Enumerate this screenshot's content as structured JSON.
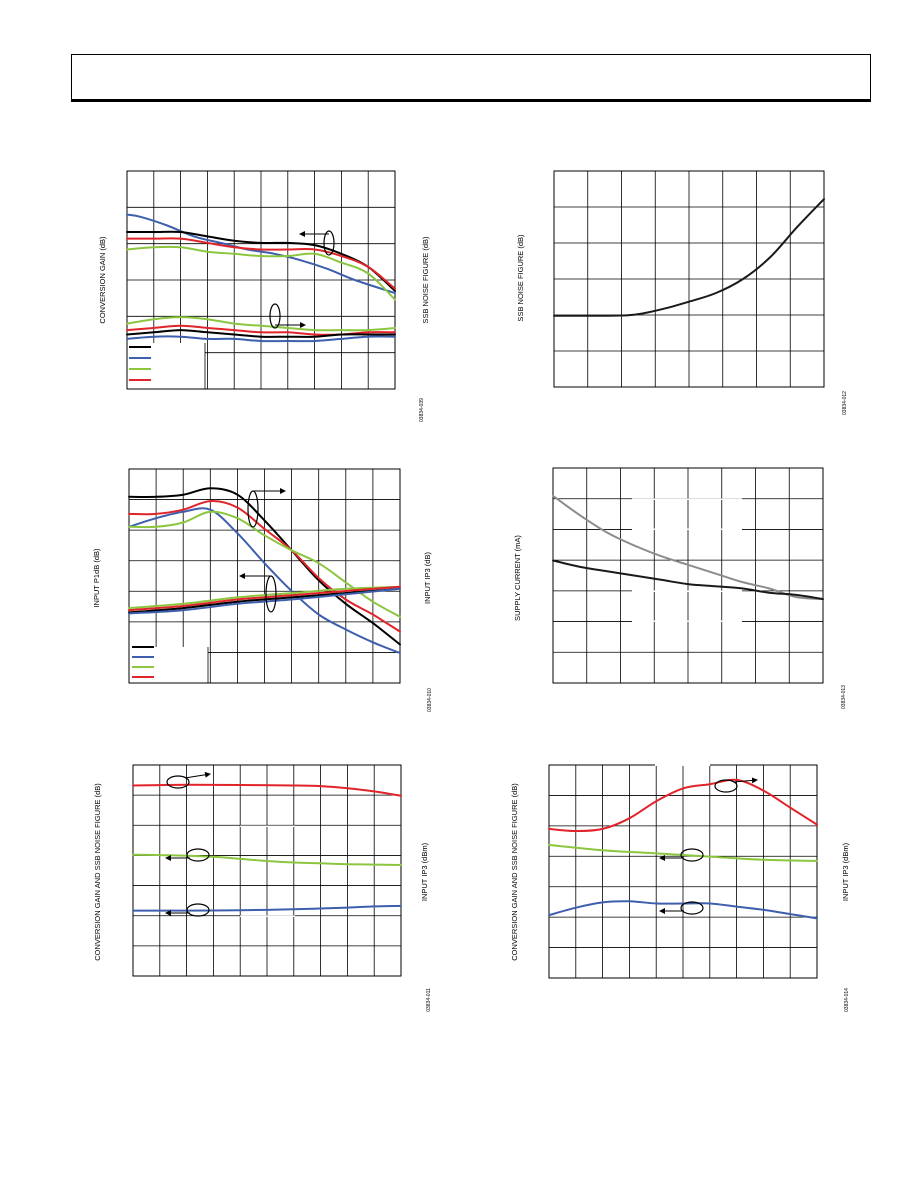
{
  "header": {
    "title": ""
  },
  "chart_data": [
    {
      "id": "chart-1",
      "type": "line",
      "left_axis_label": "CONVERSION GAIN (dB)",
      "right_axis_label": "SSB NOISE FIGURE (dB)",
      "figure_code": "03834-039",
      "legend_colors": [
        "#000000",
        "#3d5fad",
        "#8cc63f",
        "#e0242a"
      ],
      "series": [
        {
          "color": "#3d5fad",
          "values": [
            [
              0,
              0.2
            ],
            [
              0.5,
              0.21
            ],
            [
              1.5,
              0.25
            ],
            [
              2.5,
              0.3
            ],
            [
              3.5,
              0.33
            ],
            [
              4.5,
              0.36
            ],
            [
              5.5,
              0.38
            ],
            [
              6.5,
              0.41
            ],
            [
              7.5,
              0.45
            ],
            [
              8.5,
              0.5
            ],
            [
              10,
              0.56
            ]
          ]
        },
        {
          "color": "#000000",
          "values": [
            [
              0,
              0.28
            ],
            [
              1,
              0.28
            ],
            [
              2,
              0.28
            ],
            [
              3,
              0.3
            ],
            [
              4,
              0.32
            ],
            [
              5,
              0.33
            ],
            [
              6,
              0.33
            ],
            [
              7,
              0.34
            ],
            [
              8,
              0.38
            ],
            [
              9,
              0.44
            ],
            [
              10,
              0.55
            ]
          ]
        },
        {
          "color": "#e0242a",
          "values": [
            [
              0,
              0.31
            ],
            [
              1,
              0.31
            ],
            [
              2,
              0.31
            ],
            [
              3,
              0.33
            ],
            [
              4,
              0.35
            ],
            [
              5,
              0.36
            ],
            [
              6,
              0.36
            ],
            [
              7,
              0.36
            ],
            [
              8,
              0.39
            ],
            [
              9,
              0.44
            ],
            [
              10,
              0.54
            ]
          ]
        },
        {
          "color": "#8cc63f",
          "values": [
            [
              0,
              0.36
            ],
            [
              1,
              0.35
            ],
            [
              2,
              0.35
            ],
            [
              3,
              0.37
            ],
            [
              4,
              0.38
            ],
            [
              5,
              0.39
            ],
            [
              6,
              0.39
            ],
            [
              7,
              0.38
            ],
            [
              8,
              0.42
            ],
            [
              9,
              0.47
            ],
            [
              10,
              0.59
            ]
          ]
        },
        {
          "color": "#8cc63f",
          "values": [
            [
              0,
              0.7
            ],
            [
              1,
              0.68
            ],
            [
              2,
              0.67
            ],
            [
              3,
              0.68
            ],
            [
              4,
              0.7
            ],
            [
              5,
              0.71
            ],
            [
              6,
              0.72
            ],
            [
              7,
              0.73
            ],
            [
              8,
              0.73
            ],
            [
              9,
              0.73
            ],
            [
              10,
              0.72
            ]
          ]
        },
        {
          "color": "#e0242a",
          "values": [
            [
              0,
              0.73
            ],
            [
              1,
              0.72
            ],
            [
              2,
              0.71
            ],
            [
              3,
              0.72
            ],
            [
              4,
              0.73
            ],
            [
              5,
              0.74
            ],
            [
              6,
              0.74
            ],
            [
              7,
              0.75
            ],
            [
              8,
              0.75
            ],
            [
              9,
              0.74
            ],
            [
              10,
              0.74
            ]
          ]
        },
        {
          "color": "#000000",
          "values": [
            [
              0,
              0.75
            ],
            [
              1,
              0.74
            ],
            [
              2,
              0.73
            ],
            [
              3,
              0.74
            ],
            [
              4,
              0.75
            ],
            [
              5,
              0.76
            ],
            [
              6,
              0.76
            ],
            [
              7,
              0.76
            ],
            [
              8,
              0.75
            ],
            [
              9,
              0.75
            ],
            [
              10,
              0.75
            ]
          ]
        },
        {
          "color": "#3d5fad",
          "values": [
            [
              0,
              0.77
            ],
            [
              1,
              0.76
            ],
            [
              2,
              0.76
            ],
            [
              3,
              0.77
            ],
            [
              4,
              0.77
            ],
            [
              5,
              0.78
            ],
            [
              6,
              0.78
            ],
            [
              7,
              0.78
            ],
            [
              8,
              0.77
            ],
            [
              9,
              0.76
            ],
            [
              10,
              0.76
            ]
          ]
        }
      ]
    },
    {
      "id": "chart-2",
      "type": "line",
      "left_axis_label": "SSB NOISE FIGURE (dB)",
      "figure_code": "03834-012",
      "series": [
        {
          "color": "#1a1a1a",
          "values": [
            [
              0,
              0.67
            ],
            [
              2,
              0.67
            ],
            [
              3,
              0.665
            ],
            [
              4,
              0.64
            ],
            [
              5,
              0.605
            ],
            [
              6,
              0.565
            ],
            [
              7,
              0.5
            ],
            [
              8,
              0.4
            ],
            [
              9,
              0.26
            ],
            [
              10,
              0.13
            ]
          ]
        }
      ]
    },
    {
      "id": "chart-3",
      "type": "line",
      "left_axis_label": "INPUT P1dB (dB)",
      "right_axis_label": "INPUT IP3 (dB)",
      "figure_code": "03834-010",
      "legend_colors": [
        "#000000",
        "#3d5fad",
        "#8cc63f",
        "#e0242a"
      ],
      "series": [
        {
          "color": "#000000",
          "values": [
            [
              0,
              0.13
            ],
            [
              1,
              0.13
            ],
            [
              2,
              0.12
            ],
            [
              3,
              0.09
            ],
            [
              4,
              0.12
            ],
            [
              5,
              0.24
            ],
            [
              6,
              0.38
            ],
            [
              7,
              0.52
            ],
            [
              8,
              0.63
            ],
            [
              9,
              0.72
            ],
            [
              10,
              0.82
            ]
          ]
        },
        {
          "color": "#e0242a",
          "values": [
            [
              0,
              0.21
            ],
            [
              1,
              0.21
            ],
            [
              2,
              0.19
            ],
            [
              3,
              0.15
            ],
            [
              4,
              0.18
            ],
            [
              5,
              0.28
            ],
            [
              6,
              0.38
            ],
            [
              7,
              0.51
            ],
            [
              8,
              0.61
            ],
            [
              9,
              0.68
            ],
            [
              10,
              0.76
            ]
          ]
        },
        {
          "color": "#3d5fad",
          "values": [
            [
              0,
              0.27
            ],
            [
              1,
              0.23
            ],
            [
              2,
              0.2
            ],
            [
              3,
              0.19
            ],
            [
              4,
              0.3
            ],
            [
              5,
              0.44
            ],
            [
              6,
              0.57
            ],
            [
              7,
              0.68
            ],
            [
              8,
              0.75
            ],
            [
              9,
              0.81
            ],
            [
              10,
              0.86
            ]
          ]
        },
        {
          "color": "#8cc63f",
          "values": [
            [
              0,
              0.27
            ],
            [
              1,
              0.27
            ],
            [
              2,
              0.25
            ],
            [
              3,
              0.2
            ],
            [
              4,
              0.23
            ],
            [
              5,
              0.31
            ],
            [
              6,
              0.38
            ],
            [
              7,
              0.44
            ],
            [
              8,
              0.53
            ],
            [
              9,
              0.62
            ],
            [
              10,
              0.69
            ]
          ]
        },
        {
          "color": "#8cc63f",
          "values": [
            [
              0,
              0.65
            ],
            [
              2,
              0.63
            ],
            [
              4,
              0.6
            ],
            [
              6,
              0.58
            ],
            [
              8,
              0.56
            ],
            [
              10,
              0.55
            ]
          ]
        },
        {
          "color": "#e0242a",
          "values": [
            [
              0,
              0.66
            ],
            [
              2,
              0.64
            ],
            [
              4,
              0.61
            ],
            [
              6,
              0.59
            ],
            [
              8,
              0.57
            ],
            [
              10,
              0.55
            ]
          ]
        },
        {
          "color": "#000000",
          "values": [
            [
              0,
              0.67
            ],
            [
              2,
              0.65
            ],
            [
              4,
              0.62
            ],
            [
              6,
              0.6
            ],
            [
              8,
              0.58
            ],
            [
              10,
              0.56
            ]
          ]
        },
        {
          "color": "#3d5fad",
          "values": [
            [
              0,
              0.675
            ],
            [
              2,
              0.66
            ],
            [
              4,
              0.63
            ],
            [
              6,
              0.61
            ],
            [
              8,
              0.585
            ],
            [
              10,
              0.56
            ]
          ]
        }
      ]
    },
    {
      "id": "chart-4",
      "type": "line",
      "left_axis_label": "SUPPLY CURRENT (mA)",
      "figure_code": "03834-013",
      "series": [
        {
          "color": "#8c8c8c",
          "values": [
            [
              0,
              0.13
            ],
            [
              1,
              0.22
            ],
            [
              2,
              0.3
            ],
            [
              3,
              0.36
            ],
            [
              4,
              0.41
            ],
            [
              5,
              0.45
            ],
            [
              6,
              0.49
            ],
            [
              7,
              0.53
            ],
            [
              8,
              0.56
            ],
            [
              9,
              0.6
            ],
            [
              10,
              0.61
            ]
          ]
        },
        {
          "color": "#1a1a1a",
          "values": [
            [
              0,
              0.43
            ],
            [
              1,
              0.46
            ],
            [
              2,
              0.48
            ],
            [
              3,
              0.5
            ],
            [
              4,
              0.52
            ],
            [
              5,
              0.54
            ],
            [
              6,
              0.55
            ],
            [
              7,
              0.56
            ],
            [
              8,
              0.58
            ],
            [
              9,
              0.59
            ],
            [
              10,
              0.61
            ]
          ]
        }
      ]
    },
    {
      "id": "chart-5",
      "type": "line",
      "left_axis_label": "CONVERSION GAIN AND SSB NOISE FIGURE (dB)",
      "right_axis_label": "INPUT IP3 (dBm)",
      "figure_code": "03834-011",
      "series": [
        {
          "color": "#e0242a",
          "values": [
            [
              0,
              0.097
            ],
            [
              2,
              0.094
            ],
            [
              4,
              0.095
            ],
            [
              6,
              0.097
            ],
            [
              7,
              0.1
            ],
            [
              8,
              0.11
            ],
            [
              9,
              0.125
            ],
            [
              10,
              0.146
            ]
          ]
        },
        {
          "color": "#8cc63f",
          "values": [
            [
              0,
              0.425
            ],
            [
              1,
              0.427
            ],
            [
              2,
              0.43
            ],
            [
              3,
              0.435
            ],
            [
              4,
              0.445
            ],
            [
              5,
              0.455
            ],
            [
              6,
              0.462
            ],
            [
              7,
              0.466
            ],
            [
              8,
              0.47
            ],
            [
              9,
              0.472
            ],
            [
              10,
              0.474
            ]
          ]
        },
        {
          "color": "#3d5fad",
          "values": [
            [
              0,
              0.69
            ],
            [
              2,
              0.69
            ],
            [
              4,
              0.688
            ],
            [
              6,
              0.684
            ],
            [
              8,
              0.676
            ],
            [
              9,
              0.67
            ],
            [
              10,
              0.668
            ]
          ]
        }
      ]
    },
    {
      "id": "chart-6",
      "type": "line",
      "left_axis_label": "CONVERSION GAIN AND SSB NOISE FIGURE (dB)",
      "right_axis_label": "INPUT IP3 (dBm)",
      "figure_code": "03834-014",
      "series": [
        {
          "color": "#e0242a",
          "values": [
            [
              0,
              0.3
            ],
            [
              1,
              0.31
            ],
            [
              2,
              0.3
            ],
            [
              3,
              0.25
            ],
            [
              4,
              0.17
            ],
            [
              5,
              0.11
            ],
            [
              6,
              0.09
            ],
            [
              7,
              0.07
            ],
            [
              8,
              0.12
            ],
            [
              9,
              0.2
            ],
            [
              10,
              0.28
            ]
          ]
        },
        {
          "color": "#8cc63f",
          "values": [
            [
              0,
              0.375
            ],
            [
              2,
              0.4
            ],
            [
              4,
              0.415
            ],
            [
              6,
              0.43
            ],
            [
              8,
              0.445
            ],
            [
              10,
              0.45
            ]
          ]
        },
        {
          "color": "#3d5fad",
          "values": [
            [
              0,
              0.705
            ],
            [
              1,
              0.67
            ],
            [
              2,
              0.645
            ],
            [
              3,
              0.64
            ],
            [
              4,
              0.65
            ],
            [
              5,
              0.65
            ],
            [
              6,
              0.65
            ],
            [
              7,
              0.665
            ],
            [
              8,
              0.68
            ],
            [
              9,
              0.7
            ],
            [
              10,
              0.72
            ]
          ]
        }
      ]
    }
  ]
}
